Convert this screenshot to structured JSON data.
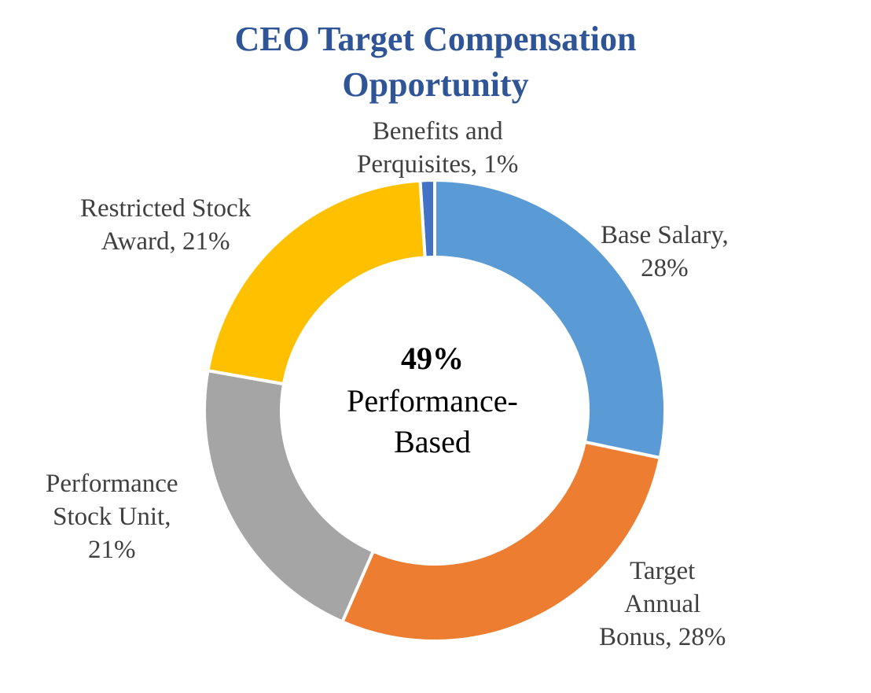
{
  "chart_data": {
    "type": "donut",
    "title_line1": "CEO Target Compensation",
    "title_line2": "Opportunity",
    "slices": [
      {
        "name": "Benefits and Perquisites",
        "value": 1,
        "color": "#4472c4",
        "label_lines": [
          "Benefits and",
          "Perquisites, 1%"
        ]
      },
      {
        "name": "Base Salary",
        "value": 28,
        "color": "#5b9bd5",
        "label_lines": [
          "Base Salary,",
          "28%"
        ]
      },
      {
        "name": "Target Annual Bonus",
        "value": 28,
        "color": "#ed7d31",
        "label_lines": [
          "Target",
          "Annual",
          "Bonus, 28%"
        ]
      },
      {
        "name": "Performance Stock Unit",
        "value": 21,
        "color": "#a5a5a5",
        "label_lines": [
          "Performance",
          "Stock Unit,",
          "21%"
        ]
      },
      {
        "name": "Restricted Stock Award",
        "value": 21,
        "color": "#ffc000",
        "label_lines": [
          "Restricted Stock",
          "Award, 21%"
        ]
      }
    ],
    "center_text": {
      "percent": "49%",
      "line1": "Performance-",
      "line2": "Based"
    }
  }
}
